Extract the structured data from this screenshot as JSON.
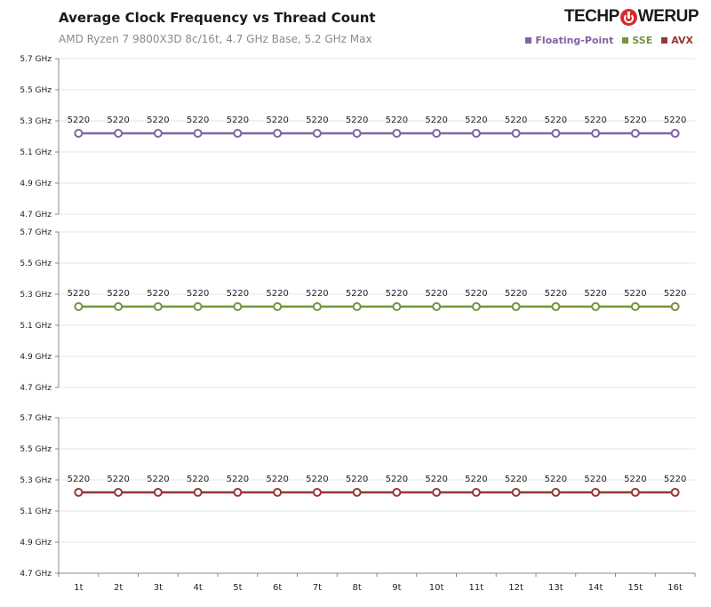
{
  "header": {
    "title": "Average Clock Frequency vs Thread Count",
    "subtitle": "AMD Ryzen 7 9800X3D 8c/16t, 4.7 GHz Base, 5.2 GHz Max",
    "logo_left": "TECHP",
    "logo_right": "WERUP"
  },
  "legend": [
    {
      "label": "Floating-Point",
      "color": "#8064a2"
    },
    {
      "label": "SSE",
      "color": "#77933c"
    },
    {
      "label": "AVX",
      "color": "#953735"
    }
  ],
  "chart_data": [
    {
      "type": "line",
      "series": [
        {
          "name": "Floating-Point",
          "color": "#8064a2",
          "values": [
            5220,
            5220,
            5220,
            5220,
            5220,
            5220,
            5220,
            5220,
            5220,
            5220,
            5220,
            5220,
            5220,
            5220,
            5220,
            5220
          ]
        }
      ],
      "categories": [
        "1t",
        "2t",
        "3t",
        "4t",
        "5t",
        "6t",
        "7t",
        "8t",
        "9t",
        "10t",
        "11t",
        "12t",
        "13t",
        "14t",
        "15t",
        "16t"
      ],
      "y_ticks": [
        "4.7 GHz",
        "4.9 GHz",
        "5.1 GHz",
        "5.3 GHz",
        "5.5 GHz",
        "5.7 GHz"
      ],
      "ylim": [
        4700,
        5700
      ],
      "grid": true
    },
    {
      "type": "line",
      "series": [
        {
          "name": "SSE",
          "color": "#77933c",
          "values": [
            5220,
            5220,
            5220,
            5220,
            5220,
            5220,
            5220,
            5220,
            5220,
            5220,
            5220,
            5220,
            5220,
            5220,
            5220,
            5220
          ]
        }
      ],
      "categories": [
        "1t",
        "2t",
        "3t",
        "4t",
        "5t",
        "6t",
        "7t",
        "8t",
        "9t",
        "10t",
        "11t",
        "12t",
        "13t",
        "14t",
        "15t",
        "16t"
      ],
      "y_ticks": [
        "4.7 GHz",
        "4.9 GHz",
        "5.1 GHz",
        "5.3 GHz",
        "5.5 GHz",
        "5.7 GHz"
      ],
      "ylim": [
        4700,
        5700
      ],
      "grid": true
    },
    {
      "type": "line",
      "series": [
        {
          "name": "AVX",
          "color": "#953735",
          "values": [
            5220,
            5220,
            5220,
            5220,
            5220,
            5220,
            5220,
            5220,
            5220,
            5220,
            5220,
            5220,
            5220,
            5220,
            5220,
            5220
          ]
        }
      ],
      "categories": [
        "1t",
        "2t",
        "3t",
        "4t",
        "5t",
        "6t",
        "7t",
        "8t",
        "9t",
        "10t",
        "11t",
        "12t",
        "13t",
        "14t",
        "15t",
        "16t"
      ],
      "y_ticks": [
        "4.7 GHz",
        "4.9 GHz",
        "5.1 GHz",
        "5.3 GHz",
        "5.5 GHz",
        "5.7 GHz"
      ],
      "ylim": [
        4700,
        5700
      ],
      "grid": true
    }
  ]
}
